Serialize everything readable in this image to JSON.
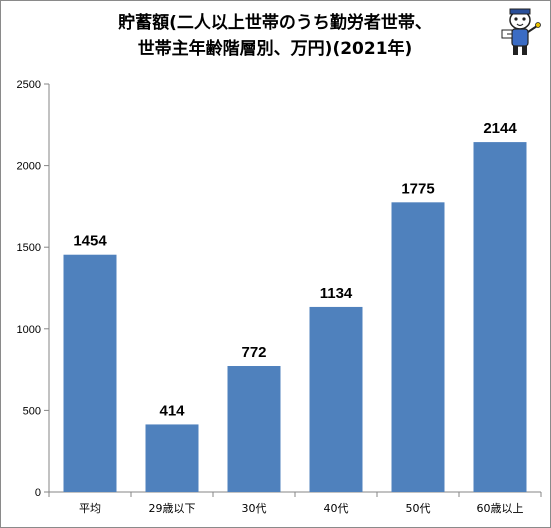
{
  "chart_data": {
    "type": "bar",
    "title_lines": [
      "貯蓄額(二人以上世帯のうち勤労者世帯、",
      "世帯主年齢階層別、万円)(2021年)"
    ],
    "categories": [
      "平均",
      "29歳以下",
      "30代",
      "40代",
      "50代",
      "60歳以上"
    ],
    "values": [
      1454,
      414,
      772,
      1134,
      1775,
      2144
    ],
    "data_labels": [
      "1454",
      "414",
      "772",
      "1134",
      "1775",
      "2144"
    ],
    "ylim": [
      0,
      2500
    ],
    "y_ticks": [
      "0",
      "500",
      "1000",
      "1500",
      "2000",
      "2500"
    ],
    "grid": false,
    "legend": "none",
    "bar_color": "#4f81bd"
  },
  "colors": {
    "axis": "#868686",
    "bar": "#4f81bd"
  },
  "icons": {
    "mascot": "cartoon-character-icon"
  }
}
